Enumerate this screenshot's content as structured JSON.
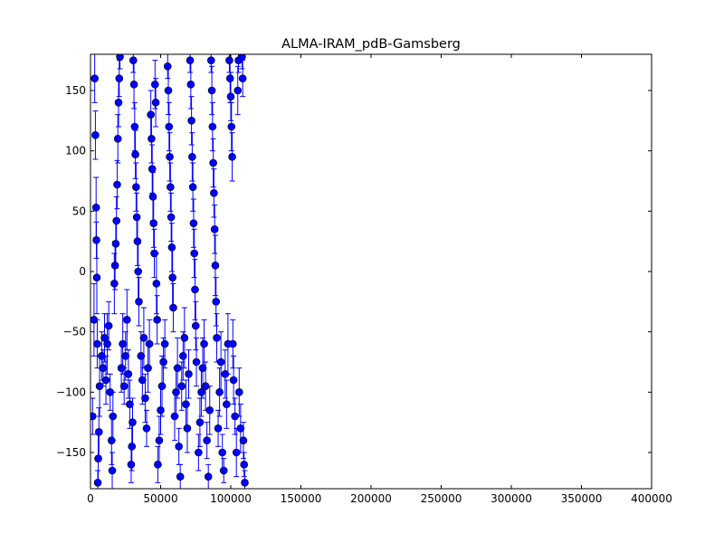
{
  "chart_data": {
    "type": "scatter",
    "title": "ALMA-IRAM_pdB-Gamsberg",
    "xlabel": "",
    "ylabel": "",
    "xlim": [
      0,
      400000
    ],
    "ylim": [
      -180,
      180
    ],
    "xticks": [
      0,
      50000,
      100000,
      150000,
      200000,
      250000,
      300000,
      350000,
      400000
    ],
    "xtick_labels": [
      "0",
      "50000",
      "100000",
      "150000",
      "200000",
      "250000",
      "300000",
      "350000",
      "400000"
    ],
    "yticks": [
      -150,
      -100,
      -50,
      0,
      50,
      100,
      150
    ],
    "ytick_labels": [
      "−150",
      "−100",
      "−50",
      "0",
      "50",
      "100",
      "150"
    ],
    "grid": false,
    "legend": "none",
    "marker_color": "#0000ff",
    "errorbar_color": "#0000ff",
    "marker_edge_color": "#000000",
    "series": [
      {
        "points": [
          [
            1500,
            -120,
            15
          ],
          [
            2500,
            -40,
            30
          ],
          [
            3000,
            160,
            20
          ],
          [
            3500,
            113,
            20
          ],
          [
            4000,
            53,
            25
          ],
          [
            4200,
            26,
            15
          ],
          [
            4500,
            -5,
            30
          ],
          [
            4800,
            -60,
            20
          ],
          [
            5200,
            -175,
            10
          ],
          [
            5500,
            -155,
            20
          ],
          [
            6000,
            -133,
            20
          ],
          [
            6500,
            -95,
            25
          ],
          [
            8000,
            -70,
            20
          ],
          [
            9000,
            -80,
            15
          ],
          [
            10000,
            -55,
            20
          ],
          [
            11000,
            -90,
            20
          ],
          [
            12000,
            -60,
            25
          ],
          [
            13000,
            -45,
            20
          ],
          [
            14000,
            -100,
            15
          ],
          [
            15000,
            -140,
            20
          ],
          [
            15500,
            -165,
            15
          ],
          [
            16000,
            -120,
            20
          ],
          [
            17000,
            -10,
            25
          ],
          [
            17500,
            5,
            20
          ],
          [
            18000,
            23,
            20
          ],
          [
            18500,
            42,
            20
          ],
          [
            19000,
            72,
            20
          ],
          [
            19500,
            110,
            20
          ],
          [
            20000,
            140,
            20
          ],
          [
            20500,
            160,
            15
          ],
          [
            21000,
            178,
            10
          ],
          [
            22000,
            -80,
            20
          ],
          [
            23000,
            -60,
            25
          ],
          [
            24000,
            -95,
            15
          ],
          [
            25000,
            -70,
            20
          ],
          [
            26000,
            -40,
            25
          ],
          [
            27000,
            -85,
            20
          ],
          [
            28000,
            -110,
            20
          ],
          [
            29000,
            -160,
            15
          ],
          [
            29500,
            -145,
            20
          ],
          [
            30000,
            -125,
            20
          ],
          [
            30500,
            175,
            10
          ],
          [
            31000,
            155,
            20
          ],
          [
            31500,
            120,
            20
          ],
          [
            32000,
            97,
            20
          ],
          [
            32500,
            70,
            20
          ],
          [
            33000,
            45,
            20
          ],
          [
            33500,
            25,
            20
          ],
          [
            34000,
            0,
            25
          ],
          [
            34500,
            -25,
            20
          ],
          [
            36000,
            -70,
            20
          ],
          [
            37000,
            -90,
            20
          ],
          [
            38000,
            -55,
            25
          ],
          [
            39000,
            -105,
            20
          ],
          [
            40000,
            -130,
            15
          ],
          [
            41000,
            -80,
            20
          ],
          [
            42000,
            -60,
            20
          ],
          [
            43000,
            130,
            20
          ],
          [
            43500,
            110,
            20
          ],
          [
            44000,
            85,
            20
          ],
          [
            44500,
            62,
            20
          ],
          [
            45000,
            40,
            20
          ],
          [
            45500,
            15,
            20
          ],
          [
            46000,
            155,
            20
          ],
          [
            46500,
            140,
            20
          ],
          [
            47000,
            -10,
            25
          ],
          [
            47500,
            -40,
            20
          ],
          [
            48000,
            -160,
            15
          ],
          [
            49000,
            -140,
            20
          ],
          [
            50000,
            -115,
            20
          ],
          [
            51000,
            -95,
            25
          ],
          [
            52000,
            -75,
            20
          ],
          [
            53000,
            -60,
            20
          ],
          [
            55000,
            170,
            10
          ],
          [
            55500,
            150,
            20
          ],
          [
            56000,
            120,
            20
          ],
          [
            56500,
            95,
            20
          ],
          [
            57000,
            70,
            20
          ],
          [
            57500,
            45,
            20
          ],
          [
            58000,
            20,
            20
          ],
          [
            58500,
            -5,
            25
          ],
          [
            59000,
            -30,
            20
          ],
          [
            60000,
            -120,
            20
          ],
          [
            61000,
            -100,
            20
          ],
          [
            62000,
            -80,
            25
          ],
          [
            63000,
            -145,
            15
          ],
          [
            64000,
            -170,
            10
          ],
          [
            65000,
            -95,
            20
          ],
          [
            66000,
            -70,
            20
          ],
          [
            67000,
            -55,
            25
          ],
          [
            68000,
            -110,
            20
          ],
          [
            69000,
            -130,
            20
          ],
          [
            70000,
            -85,
            20
          ],
          [
            71000,
            175,
            10
          ],
          [
            71500,
            155,
            20
          ],
          [
            72000,
            125,
            20
          ],
          [
            72500,
            95,
            20
          ],
          [
            73000,
            70,
            20
          ],
          [
            73500,
            40,
            20
          ],
          [
            74000,
            15,
            20
          ],
          [
            74500,
            -15,
            25
          ],
          [
            75000,
            -45,
            20
          ],
          [
            75500,
            -75,
            20
          ],
          [
            77000,
            -150,
            15
          ],
          [
            78000,
            -125,
            20
          ],
          [
            79000,
            -100,
            20
          ],
          [
            80000,
            -80,
            25
          ],
          [
            81000,
            -60,
            20
          ],
          [
            82000,
            -95,
            20
          ],
          [
            83000,
            -140,
            15
          ],
          [
            84000,
            -170,
            10
          ],
          [
            85000,
            -115,
            20
          ],
          [
            86000,
            175,
            10
          ],
          [
            86500,
            150,
            20
          ],
          [
            87000,
            120,
            20
          ],
          [
            87500,
            90,
            20
          ],
          [
            88000,
            65,
            20
          ],
          [
            88500,
            35,
            20
          ],
          [
            89000,
            5,
            25
          ],
          [
            89500,
            -25,
            20
          ],
          [
            90000,
            -55,
            20
          ],
          [
            91000,
            -130,
            15
          ],
          [
            92000,
            -100,
            20
          ],
          [
            93000,
            -75,
            25
          ],
          [
            94000,
            -150,
            15
          ],
          [
            95000,
            -165,
            10
          ],
          [
            96000,
            -85,
            20
          ],
          [
            97000,
            -110,
            20
          ],
          [
            98000,
            -60,
            25
          ],
          [
            99000,
            175,
            10
          ],
          [
            99500,
            160,
            20
          ],
          [
            100000,
            145,
            20
          ],
          [
            100500,
            120,
            20
          ],
          [
            101000,
            95,
            20
          ],
          [
            101500,
            -60,
            20
          ],
          [
            102000,
            -90,
            20
          ],
          [
            103000,
            -120,
            15
          ],
          [
            104000,
            -150,
            20
          ],
          [
            105000,
            150,
            20
          ],
          [
            105500,
            175,
            10
          ],
          [
            106000,
            -100,
            20
          ],
          [
            107000,
            -130,
            20
          ],
          [
            108000,
            178,
            10
          ],
          [
            108500,
            160,
            15
          ],
          [
            109000,
            -140,
            15
          ],
          [
            109500,
            -160,
            10
          ],
          [
            110000,
            -175,
            10
          ]
        ]
      }
    ]
  }
}
